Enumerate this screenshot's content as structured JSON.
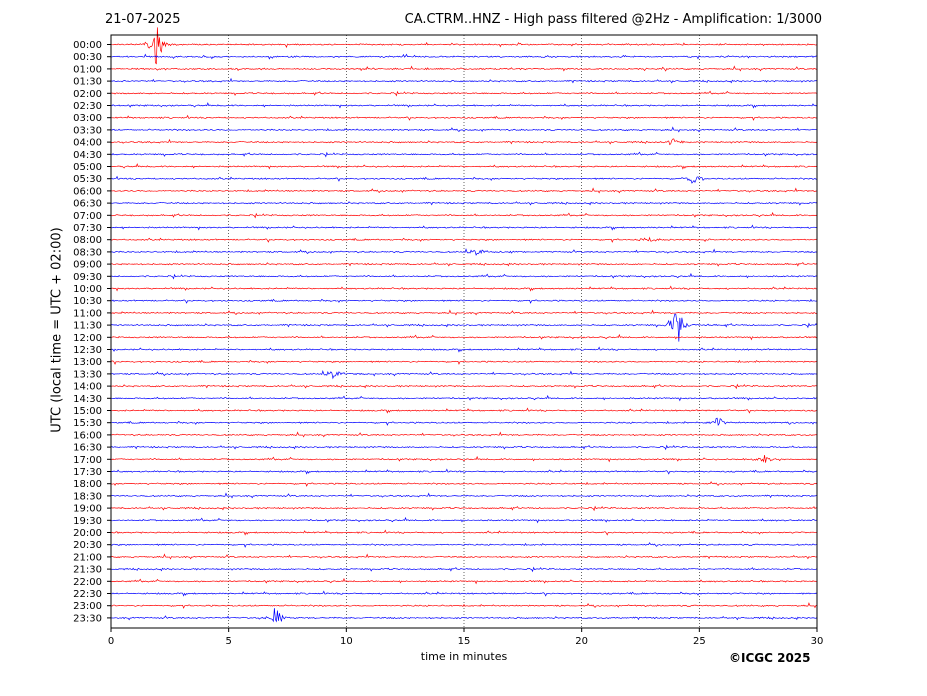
{
  "header": {
    "date": "21-07-2025",
    "title": "CA.CTRM..HNZ - High pass filtered @2Hz - Amplification: 1/3000"
  },
  "footer": {
    "copyright": "©ICGC 2025"
  },
  "chart_data": {
    "type": "line",
    "title": "CA.CTRM..HNZ - High pass filtered @2Hz - Amplification: 1/3000",
    "xlabel": "time in minutes",
    "ylabel": "UTC (local time = UTC + 02:00)",
    "xlim": [
      0,
      30
    ],
    "x_ticks": [
      "0",
      "5",
      "10",
      "15",
      "20",
      "25",
      "30"
    ],
    "grid": "vertical dotted at 5-minute ticks",
    "colors": {
      "even_rows": "#ff0000",
      "odd_rows": "#0000ff"
    },
    "rows": [
      "00:00",
      "00:30",
      "01:00",
      "01:30",
      "02:00",
      "02:30",
      "03:00",
      "03:30",
      "04:00",
      "04:30",
      "05:00",
      "05:30",
      "06:00",
      "06:30",
      "07:00",
      "07:30",
      "08:00",
      "08:30",
      "09:00",
      "09:30",
      "10:00",
      "10:30",
      "11:00",
      "11:30",
      "12:00",
      "12:30",
      "13:00",
      "13:30",
      "14:00",
      "14:30",
      "15:00",
      "15:30",
      "16:00",
      "16:30",
      "17:00",
      "17:30",
      "18:00",
      "18:30",
      "19:00",
      "19:30",
      "20:00",
      "20:30",
      "21:00",
      "21:30",
      "22:00",
      "22:30",
      "23:00",
      "23:30"
    ],
    "events": [
      {
        "row": "00:00",
        "minute": 1.95,
        "amplitude": 2.2
      },
      {
        "row": "04:00",
        "minute": 23.9,
        "amplitude": 0.3
      },
      {
        "row": "05:30",
        "minute": 24.8,
        "amplitude": 0.5
      },
      {
        "row": "08:00",
        "minute": 22.9,
        "amplitude": 0.4
      },
      {
        "row": "08:30",
        "minute": 15.6,
        "amplitude": 0.3
      },
      {
        "row": "11:30",
        "minute": 24.1,
        "amplitude": 1.6
      },
      {
        "row": "13:30",
        "minute": 9.5,
        "amplitude": 0.4
      },
      {
        "row": "15:30",
        "minute": 25.8,
        "amplitude": 0.4
      },
      {
        "row": "17:00",
        "minute": 27.8,
        "amplitude": 0.3
      },
      {
        "row": "23:30",
        "minute": 7.0,
        "amplitude": 0.9
      }
    ]
  }
}
